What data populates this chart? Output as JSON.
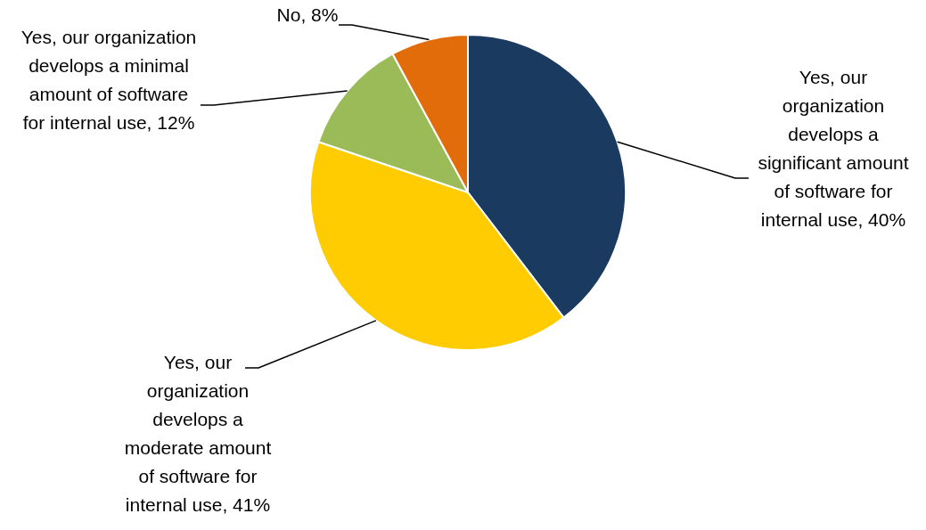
{
  "chart_data": {
    "type": "pie",
    "categories": [
      "Yes, our organization develops a significant amount of software for internal use",
      "Yes, our organization develops a moderate amount of software for internal use",
      "Yes, our organization develops a minimal amount of software for internal use",
      "No"
    ],
    "values": [
      40,
      41,
      12,
      8
    ],
    "value_labels": [
      "40%",
      "41%",
      "12%",
      "8%"
    ],
    "colors": [
      "#1a3a5f",
      "#fecc00",
      "#9bbb59",
      "#e36c0a"
    ],
    "legend": false
  }
}
